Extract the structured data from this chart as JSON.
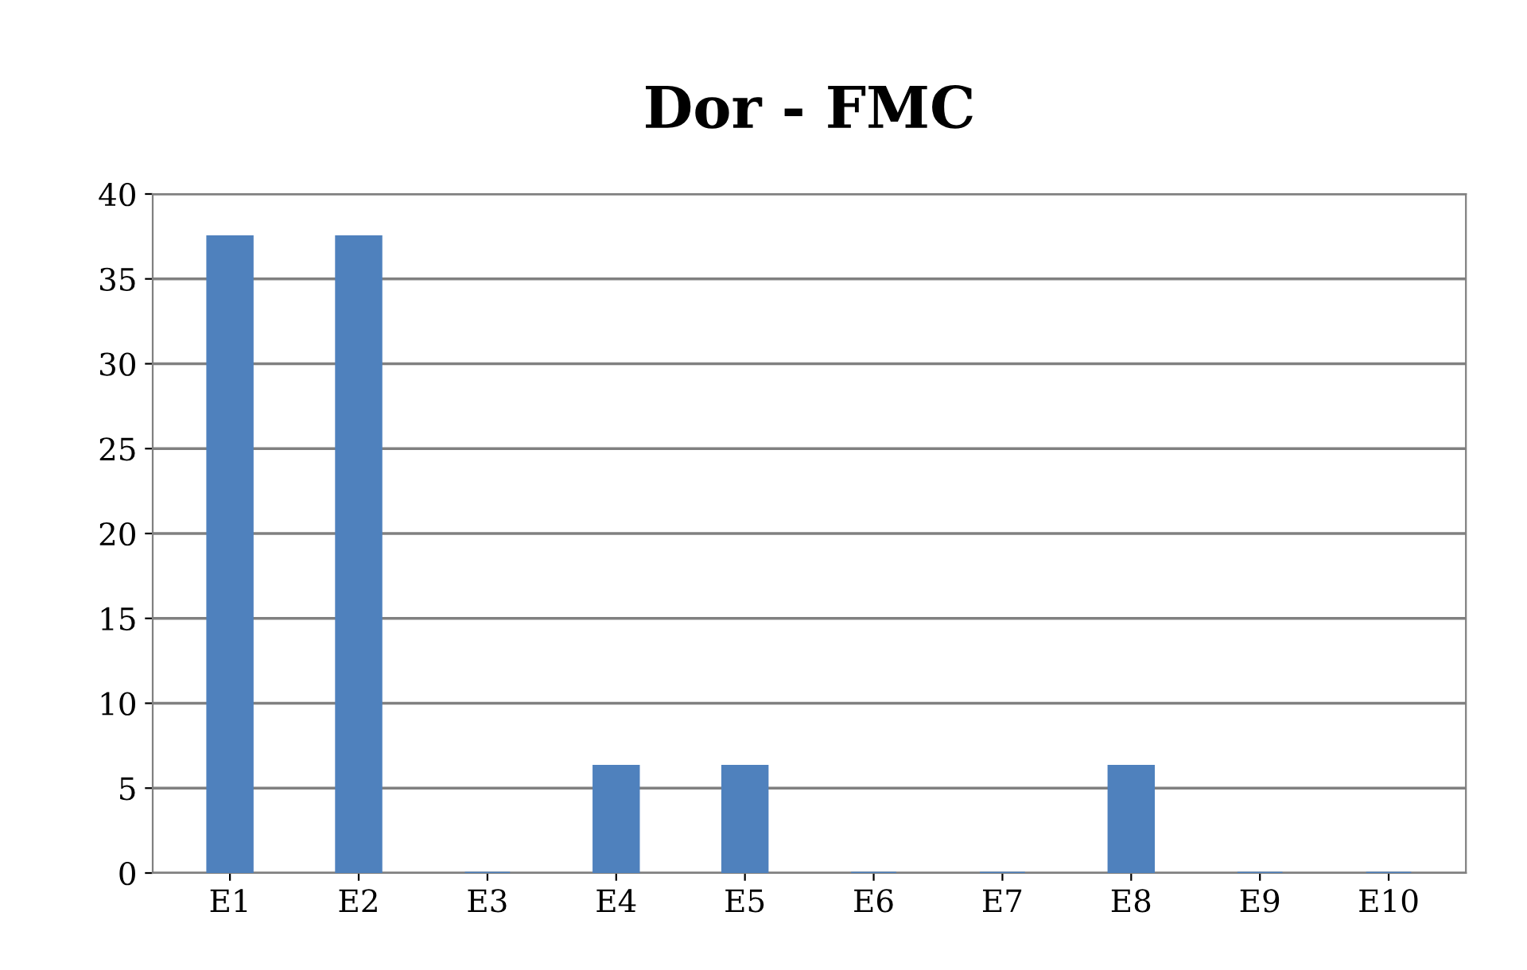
{
  "chart_data": {
    "type": "bar",
    "title": "Dor - FMC",
    "categories": [
      "E1",
      "E2",
      "E3",
      "E4",
      "E5",
      "E6",
      "E7",
      "E8",
      "E9",
      "E10"
    ],
    "values": [
      37.5,
      37.5,
      0,
      6.3,
      6.3,
      0,
      0,
      6.3,
      0,
      0
    ],
    "color": "#4f81bd",
    "ylim": [
      0,
      40
    ],
    "yticks": [
      0,
      5,
      10,
      15,
      20,
      25,
      30,
      35,
      40
    ],
    "grid": "y",
    "legend": false
  }
}
